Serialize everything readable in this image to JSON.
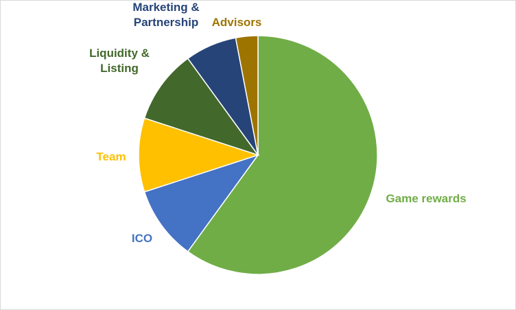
{
  "chart_data": {
    "type": "pie",
    "title": "",
    "start_angle_deg": 0,
    "direction": "clockwise",
    "legend": "none",
    "slices": [
      {
        "label": "Game rewards",
        "value": 60,
        "color": "#70ad47",
        "label_lines": [
          "Game rewards"
        ]
      },
      {
        "label": "ICO",
        "value": 10,
        "color": "#4472c4",
        "label_lines": [
          "ICO"
        ]
      },
      {
        "label": "Team",
        "value": 10,
        "color": "#ffc000",
        "label_lines": [
          "Team"
        ]
      },
      {
        "label": "Liquidity & Listing",
        "value": 10,
        "color": "#43682b",
        "label_lines": [
          "Liquidity &",
          "Listing"
        ]
      },
      {
        "label": "Marketing & Partnership",
        "value": 7,
        "color": "#264478",
        "label_lines": [
          "Marketing &",
          "Partnership"
        ]
      },
      {
        "label": "Advisors",
        "value": 3,
        "color": "#9e7400",
        "label_lines": [
          "Advisors"
        ]
      }
    ]
  }
}
